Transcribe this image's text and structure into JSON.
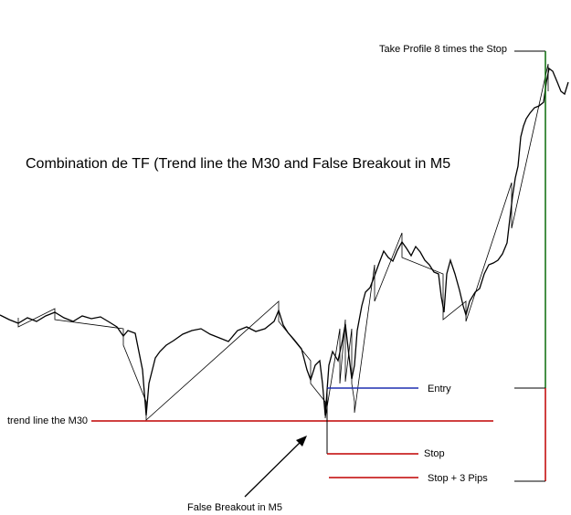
{
  "title": "Combination de TF (Trend line the M30  and False Breakout in M5",
  "annotations": {
    "take_profit": "Take Profile 8 times the Stop",
    "trend_line": "trend line the M30",
    "entry": "Entry",
    "stop": "Stop",
    "stop_plus": "Stop + 3 Pips",
    "false_breakout": "False Breakout in M5"
  }
}
